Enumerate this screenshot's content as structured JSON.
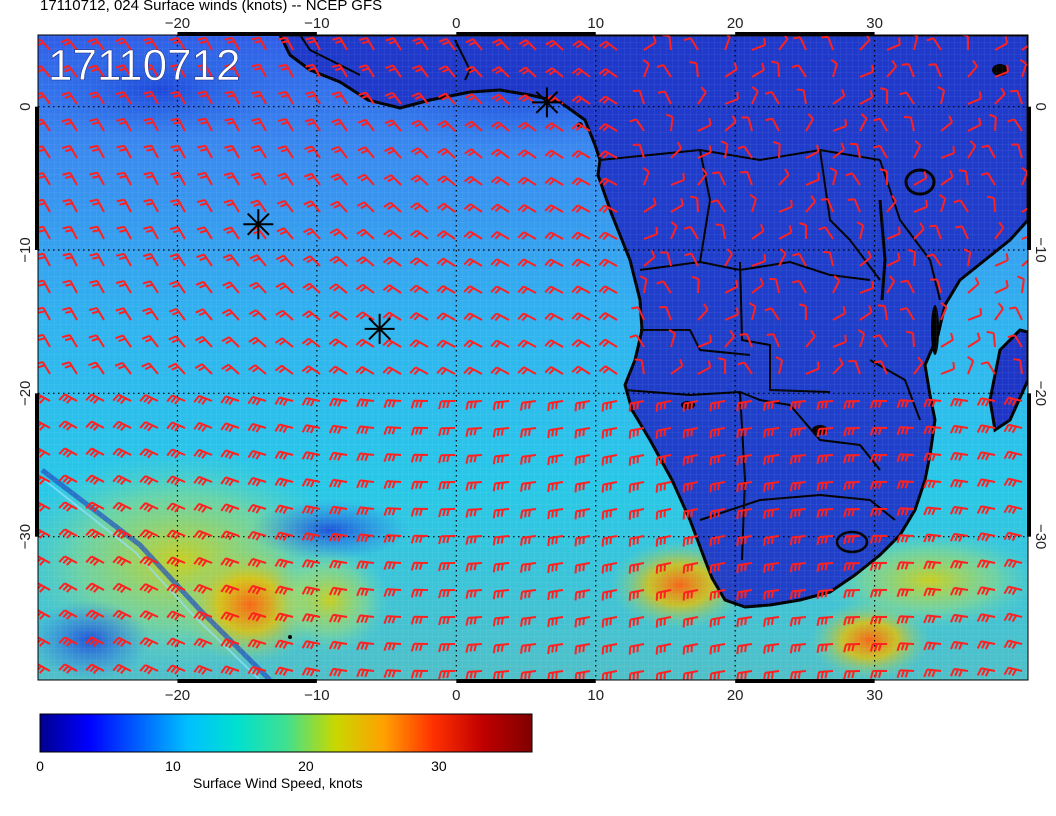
{
  "title": "17110712, 024 Surface winds (knots) -- NCEP GFS",
  "date_stamp": "17110712",
  "map": {
    "lon_range": [
      -30,
      41
    ],
    "lat_range": [
      -40,
      5
    ],
    "lon_ticks": [
      -20,
      -10,
      0,
      10,
      20,
      30
    ],
    "lat_ticks": [
      0,
      -10,
      -20,
      -30
    ],
    "lon_tick_labels": [
      "−20",
      "−10",
      "0",
      "10",
      "20",
      "30"
    ],
    "lat_tick_labels": [
      "0",
      "−10",
      "−20",
      "−30"
    ],
    "gridlines": "dotted",
    "markers": [
      {
        "symbol": "asterisk",
        "lon": 6.5,
        "lat": 0.3
      },
      {
        "symbol": "asterisk",
        "lon": -14.2,
        "lat": -8.2
      },
      {
        "symbol": "asterisk",
        "lon": -5.5,
        "lat": -15.5
      }
    ]
  },
  "colorbar": {
    "label": "Surface Wind Speed, knots",
    "range": [
      0,
      37
    ],
    "tick_values": [
      0,
      10,
      20,
      30
    ],
    "tick_labels": [
      "0",
      "10",
      "20",
      "30"
    ],
    "colors": [
      "#00008f",
      "#0000ff",
      "#0060ff",
      "#00c0ff",
      "#00e0d0",
      "#40e090",
      "#c8d800",
      "#ffa000",
      "#ff3000",
      "#c00000",
      "#800000"
    ]
  },
  "colors": {
    "wind_barbs": "#ff2020",
    "coastline": "#000000",
    "ocean_base": "#3aa0f0",
    "land_base": "#1a30c8"
  }
}
